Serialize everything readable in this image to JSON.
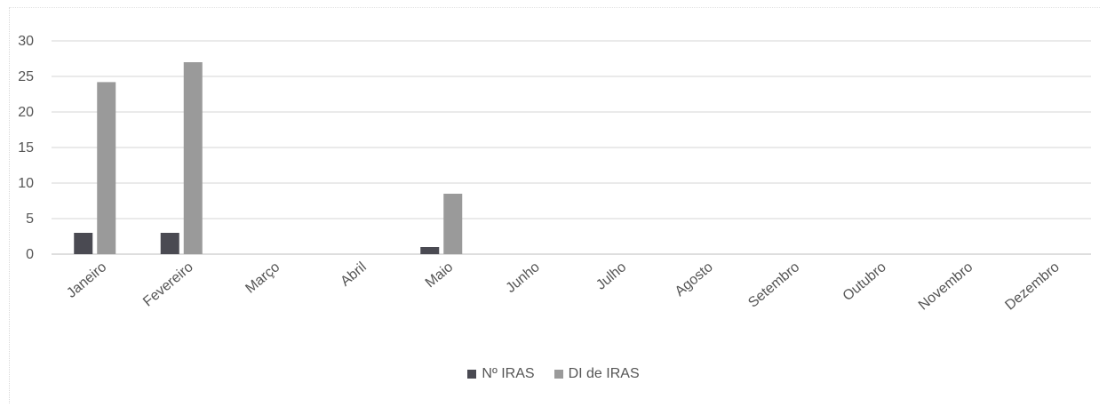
{
  "chart_data": {
    "type": "bar",
    "categories": [
      "Janeiro",
      "Fevereiro",
      "Março",
      "Abril",
      "Maio",
      "Junho",
      "Julho",
      "Agosto",
      "Setembro",
      "Outubro",
      "Novembro",
      "Dezembro"
    ],
    "series": [
      {
        "name": "Nº IRAS",
        "color": "#4a4a52",
        "values": [
          3,
          3,
          0,
          0,
          1,
          0,
          0,
          0,
          0,
          0,
          0,
          0
        ]
      },
      {
        "name": "DI de IRAS",
        "color": "#9a9a9a",
        "values": [
          24.2,
          27,
          0,
          0,
          8.5,
          0,
          0,
          0,
          0,
          0,
          0,
          0
        ]
      }
    ],
    "yticks": [
      "0",
      "5",
      "10",
      "15",
      "20",
      "25",
      "30"
    ],
    "ylim": [
      0,
      30
    ],
    "grid": true,
    "legend_position": "bottom",
    "title": "",
    "xlabel": "",
    "ylabel": ""
  }
}
